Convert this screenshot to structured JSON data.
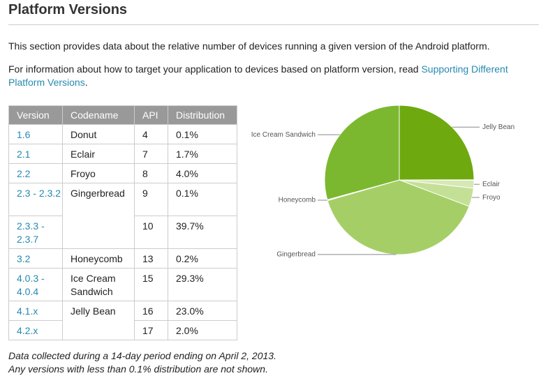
{
  "header": {
    "title": "Platform Versions"
  },
  "intro": "This section provides data about the relative number of devices running a given version of the Android platform.",
  "info": {
    "text": "For information about how to target your application to devices based on platform version, read ",
    "link": "Supporting Different Platform Versions",
    "end": "."
  },
  "table": {
    "columns": [
      "Version",
      "Codename",
      "API",
      "Distribution"
    ],
    "groups": [
      {
        "codename": "Donut",
        "rows": [
          {
            "version": "1.6",
            "api": "4",
            "distribution": "0.1%"
          }
        ]
      },
      {
        "codename": "Eclair",
        "rows": [
          {
            "version": "2.1",
            "api": "7",
            "distribution": "1.7%"
          }
        ]
      },
      {
        "codename": "Froyo",
        "rows": [
          {
            "version": "2.2",
            "api": "8",
            "distribution": "4.0%"
          }
        ]
      },
      {
        "codename": "Gingerbread",
        "rows": [
          {
            "version": "2.3 - 2.3.2",
            "api": "9",
            "distribution": "0.1%"
          },
          {
            "version": "2.3.3 - 2.3.7",
            "api": "10",
            "distribution": "39.7%"
          }
        ]
      },
      {
        "codename": "Honeycomb",
        "rows": [
          {
            "version": "3.2",
            "api": "13",
            "distribution": "0.2%"
          }
        ]
      },
      {
        "codename": "Ice Cream Sandwich",
        "rows": [
          {
            "version": "4.0.3 - 4.0.4",
            "api": "15",
            "distribution": "29.3%"
          }
        ]
      },
      {
        "codename": "Jelly Bean",
        "rows": [
          {
            "version": "4.1.x",
            "api": "16",
            "distribution": "23.0%"
          },
          {
            "version": "4.2.x",
            "api": "17",
            "distribution": "2.0%"
          }
        ]
      }
    ]
  },
  "footnote": [
    "Data collected during a 14-day period ending on April 2, 2013.",
    "Any versions with less than 0.1% distribution are not shown."
  ],
  "chart_data": {
    "type": "pie",
    "categories": [
      "Jelly Bean",
      null,
      "Eclair",
      "Froyo",
      "Gingerbread",
      "Honeycomb",
      "Ice Cream Sandwich"
    ],
    "values": [
      25.0,
      0.1,
      1.7,
      4.0,
      39.8,
      0.2,
      29.3
    ],
    "colors": [
      "#6ea90f",
      "#8fc44a",
      "#d6e8b6",
      "#c4e097",
      "#a5cf66",
      "#e6f1d5",
      "#7bb82f"
    ]
  }
}
